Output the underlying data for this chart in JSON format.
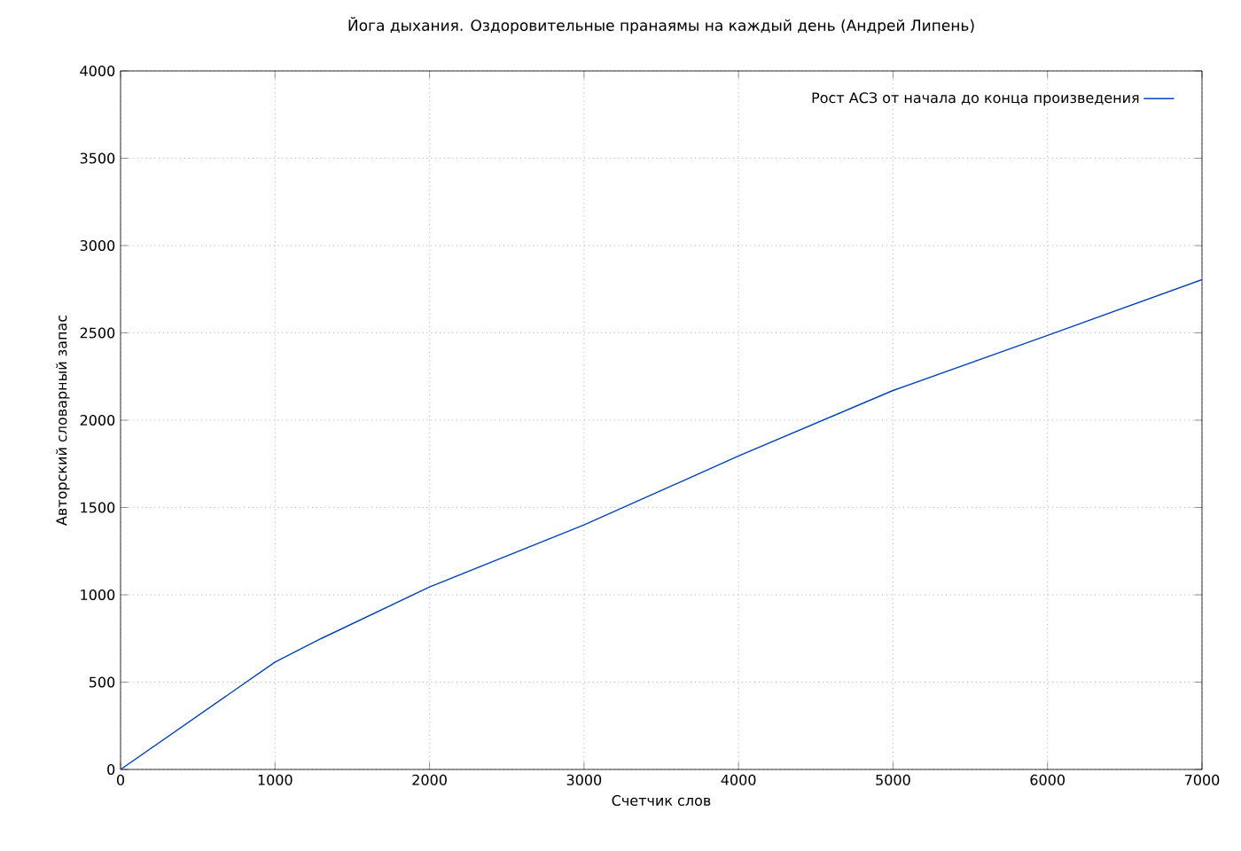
{
  "chart_data": {
    "type": "line",
    "title": "Йога дыхания. Оздоровительные пранаямы на каждый день (Андрей Липень)",
    "xlabel": "Счетчик слов",
    "ylabel": "Авторский словарный запас",
    "x": [
      0,
      1000,
      1300,
      2000,
      3000,
      4000,
      5000,
      6000,
      7000
    ],
    "series": [
      {
        "name": "Рост АСЗ от начала до конца произведения",
        "color": "#0044bb",
        "values": [
          0,
          615,
          750,
          1045,
          1400,
          1795,
          2170,
          2485,
          2805
        ]
      }
    ],
    "xlim": [
      0,
      7000
    ],
    "ylim": [
      0,
      4000
    ],
    "xticks": [
      0,
      1000,
      2000,
      3000,
      4000,
      5000,
      6000,
      7000
    ],
    "yticks": [
      0,
      500,
      1000,
      1500,
      2000,
      2500,
      3000,
      3500,
      4000
    ],
    "grid": true,
    "legend": "top right",
    "marker": "none",
    "line_style": "solid"
  }
}
